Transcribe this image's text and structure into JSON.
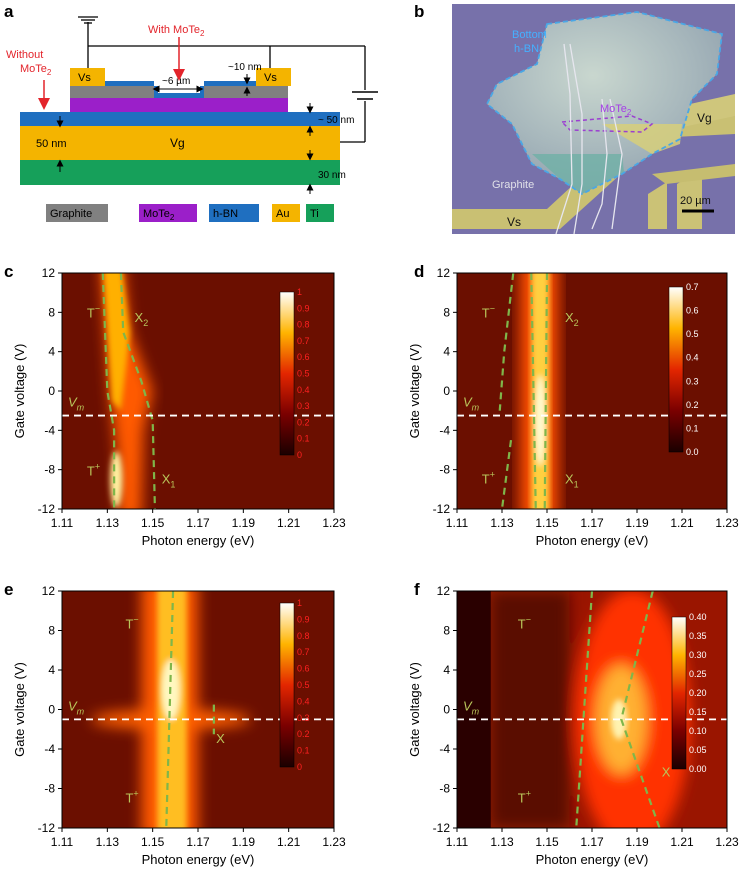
{
  "panel_labels": {
    "a": "a",
    "b": "b",
    "c": "c",
    "d": "d",
    "e": "e",
    "f": "f"
  },
  "schematic": {
    "without_mote2_l1": "Without",
    "without_mote2_l2": "MoTe",
    "with_mote2": "With MoTe",
    "sub2": "2",
    "vs_left": "Vs",
    "vs_right": "Vs",
    "gap": "~6 µm",
    "thickness_top": "~10 nm",
    "thickness_hbn": "~ 50 nm",
    "thickness_au": "50 nm",
    "thickness_ti": "30 nm",
    "vg": "Vg",
    "colors": {
      "graphite": "#808080",
      "mote2": "#9b1fc9",
      "hbn": "#1f6fc0",
      "au": "#f4b400",
      "ti": "#16a05a"
    }
  },
  "legend": [
    {
      "label": "Graphite",
      "color": "#808080"
    },
    {
      "label": "MoTe",
      "sub": "2",
      "color": "#9b1fc9"
    },
    {
      "label": "h-BN",
      "color": "#1f6fc0"
    },
    {
      "label": "Au",
      "color": "#f4b400"
    },
    {
      "label": "Ti",
      "color": "#16a05a"
    }
  ],
  "photo": {
    "bottom_hbn_l1": "Bottom",
    "bottom_hbn_l2": "h-BN",
    "mote2": "MoTe",
    "sub2": "2",
    "vg": "Vg",
    "graphite": "Graphite",
    "vs": "Vs",
    "scale": "20 µm"
  },
  "chart_data": [
    {
      "panel": "c",
      "type": "heatmap",
      "xlabel": "Photon energy (eV)",
      "ylabel": "Gate voltage (V)",
      "xlim": [
        1.11,
        1.23
      ],
      "ylim": [
        -12,
        12
      ],
      "xticks": [
        "1.11",
        "1.13",
        "1.15",
        "1.17",
        "1.19",
        "1.21",
        "1.23"
      ],
      "yticks": [
        "12",
        "8",
        "4",
        "0",
        "-4",
        "-8",
        "-12"
      ],
      "colorbar_ticks": [
        "1",
        "0.9",
        "0.8",
        "0.7",
        "0.6",
        "0.5",
        "0.4",
        "0.3",
        "0.2",
        "0.1",
        "0"
      ],
      "vm_label": "V",
      "vm_sub": "m",
      "vm_value": -2.5,
      "labels": [
        {
          "t": "T",
          "s": "−",
          "x": 1.121,
          "y": 7.5
        },
        {
          "t": "X",
          "s": "2",
          "x": 1.142,
          "y": 7.0
        },
        {
          "t": "T",
          "s": "+",
          "x": 1.121,
          "y": -8.6
        },
        {
          "t": "X",
          "s": "1",
          "x": 1.154,
          "y": -9.4
        }
      ]
    },
    {
      "panel": "d",
      "type": "heatmap",
      "xlabel": "Photon energy (eV)",
      "ylabel": "Gate voltage (V)",
      "xlim": [
        1.11,
        1.23
      ],
      "ylim": [
        -12,
        12
      ],
      "xticks": [
        "1.11",
        "1.13",
        "1.15",
        "1.17",
        "1.19",
        "1.21",
        "1.23"
      ],
      "yticks": [
        "12",
        "8",
        "4",
        "0",
        "-4",
        "-8",
        "-12"
      ],
      "colorbar_ticks": [
        "0.7",
        "0.6",
        "0.5",
        "0.4",
        "0.3",
        "0.2",
        "0.1",
        "0.0"
      ],
      "vm_label": "V",
      "vm_sub": "m",
      "vm_value": -2.5,
      "labels": [
        {
          "t": "T",
          "s": "−",
          "x": 1.121,
          "y": 7.5
        },
        {
          "t": "X",
          "s": "2",
          "x": 1.158,
          "y": 7.0
        },
        {
          "t": "T",
          "s": "+",
          "x": 1.121,
          "y": -9.4
        },
        {
          "t": "X",
          "s": "1",
          "x": 1.158,
          "y": -9.4
        }
      ]
    },
    {
      "panel": "e",
      "type": "heatmap",
      "xlabel": "Photon energy (eV)",
      "ylabel": "Gate voltage (V)",
      "xlim": [
        1.11,
        1.23
      ],
      "ylim": [
        -12,
        12
      ],
      "xticks": [
        "1.11",
        "1.13",
        "1.15",
        "1.17",
        "1.19",
        "1.21",
        "1.23"
      ],
      "yticks": [
        "12",
        "8",
        "4",
        "0",
        "-4",
        "-8",
        "-12"
      ],
      "colorbar_ticks": [
        "1",
        "0.9",
        "0.8",
        "0.7",
        "0.6",
        "0.5",
        "0.4",
        "0.3",
        "0.2",
        "0.1",
        "0"
      ],
      "vm_label": "V",
      "vm_sub": "m",
      "vm_value": -1.0,
      "labels": [
        {
          "t": "T",
          "s": "−",
          "x": 1.138,
          "y": 8.2
        },
        {
          "t": "T",
          "s": "+",
          "x": 1.138,
          "y": -9.4
        },
        {
          "t": "X",
          "s": "",
          "x": 1.178,
          "y": -3.4
        }
      ]
    },
    {
      "panel": "f",
      "type": "heatmap",
      "xlabel": "Photon energy (eV)",
      "ylabel": "Gate voltage (V)",
      "xlim": [
        1.11,
        1.23
      ],
      "ylim": [
        -12,
        12
      ],
      "xticks": [
        "1.11",
        "1.13",
        "1.15",
        "1.17",
        "1.19",
        "1.21",
        "1.23"
      ],
      "yticks": [
        "12",
        "8",
        "4",
        "0",
        "-4",
        "-8",
        "-12"
      ],
      "colorbar_ticks": [
        "0.40",
        "0.35",
        "0.30",
        "0.25",
        "0.20",
        "0.15",
        "0.10",
        "0.05",
        "0.00"
      ],
      "vm_label": "V",
      "vm_sub": "m",
      "vm_value": -1.0,
      "labels": [
        {
          "t": "T",
          "s": "−",
          "x": 1.137,
          "y": 8.2
        },
        {
          "t": "T",
          "s": "+",
          "x": 1.137,
          "y": -9.4
        },
        {
          "t": "X",
          "s": "",
          "x": 1.201,
          "y": -6.8
        }
      ]
    }
  ]
}
